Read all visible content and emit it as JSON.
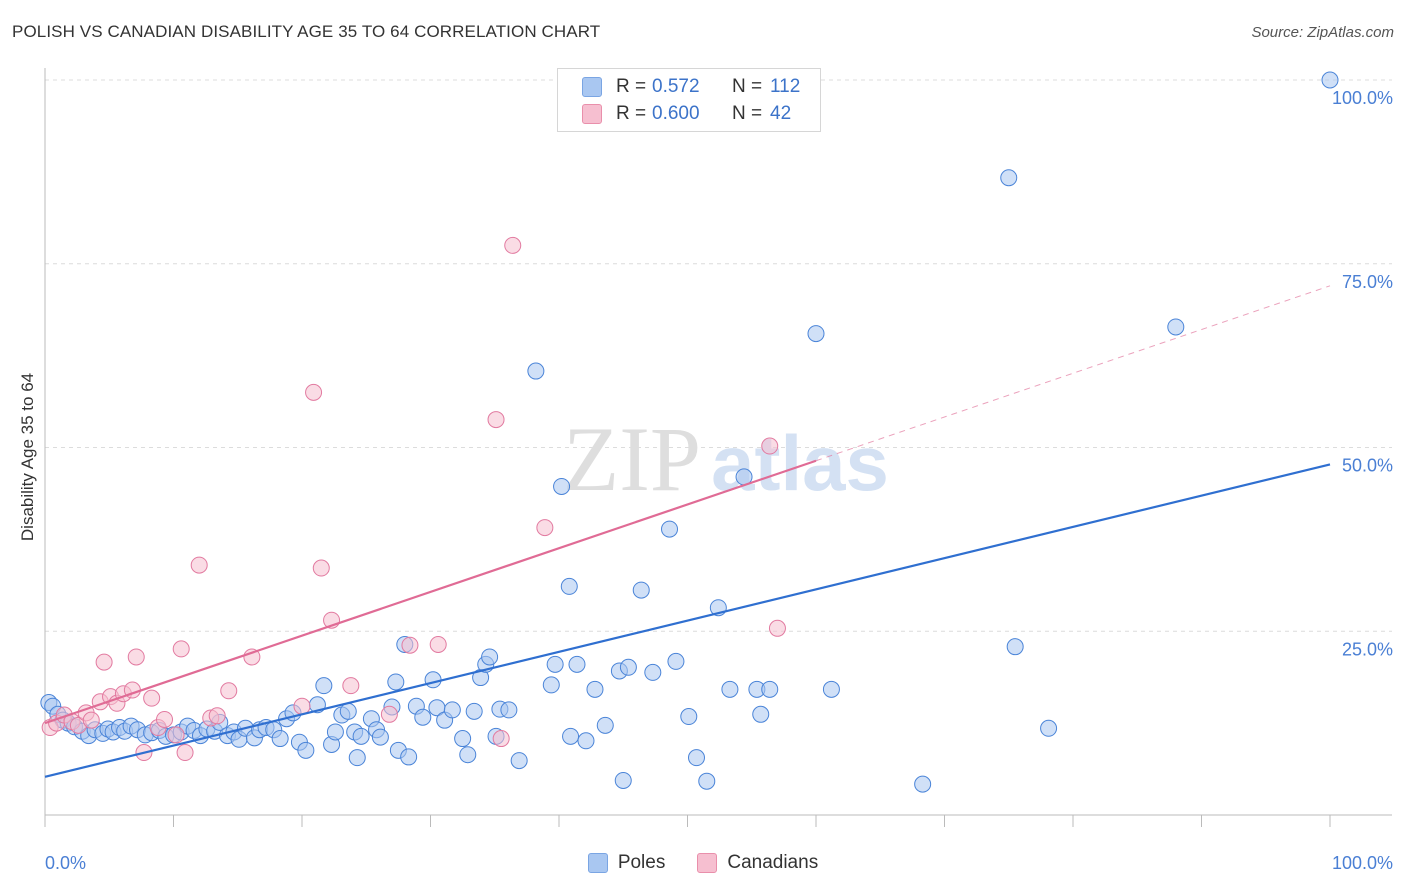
{
  "title": "POLISH VS CANADIAN DISABILITY AGE 35 TO 64 CORRELATION CHART",
  "source": "Source: ZipAtlas.com",
  "watermark": {
    "zip": "ZIP",
    "atlas": "atlas"
  },
  "legend": {
    "rows": [
      {
        "r_key": "R =",
        "r_value": "0.572",
        "n_key": "N =",
        "n_value": "112",
        "color": "#a9c7f1",
        "border": "#7aa5e3"
      },
      {
        "r_key": "R =",
        "r_value": "0.600",
        "n_key": "N =",
        "n_value": "42",
        "color": "#f6bfd0",
        "border": "#e98fab"
      }
    ],
    "bottom": [
      {
        "label": "Poles",
        "color": "#a9c7f1",
        "border": "#7aa5e3"
      },
      {
        "label": "Canadians",
        "color": "#f6bfd0",
        "border": "#e98fab"
      }
    ]
  },
  "chart_data": {
    "type": "scatter",
    "xlabel": "",
    "ylabel": "Disability Age 35 to 64",
    "xlim": [
      0,
      100
    ],
    "ylim": [
      0,
      100
    ],
    "x_tick_labels": [
      "0.0%",
      "100.0%"
    ],
    "y_tick_labels": [
      {
        "value": 25,
        "label": "25.0%"
      },
      {
        "value": 50,
        "label": "50.0%"
      },
      {
        "value": 75,
        "label": "75.0%"
      },
      {
        "value": 100,
        "label": "100.0%"
      }
    ],
    "series": [
      {
        "name": "Poles",
        "color": "#4a84d8",
        "fill": "#a9c7f1",
        "trend": {
          "x": [
            0,
            100
          ],
          "y": [
            5.2,
            47.7
          ],
          "color": "#2f6fd0"
        },
        "points": [
          [
            0.3,
            15.3
          ],
          [
            0.6,
            14.8
          ],
          [
            1.0,
            13.7
          ],
          [
            1.4,
            12.9
          ],
          [
            1.8,
            12.5
          ],
          [
            2.3,
            12.0
          ],
          [
            2.9,
            11.4
          ],
          [
            3.4,
            10.8
          ],
          [
            3.9,
            11.6
          ],
          [
            4.5,
            11.1
          ],
          [
            4.9,
            11.7
          ],
          [
            5.3,
            11.3
          ],
          [
            5.8,
            11.9
          ],
          [
            6.2,
            11.4
          ],
          [
            6.7,
            12.1
          ],
          [
            7.2,
            11.6
          ],
          [
            7.8,
            10.9
          ],
          [
            8.3,
            11.2
          ],
          [
            8.9,
            11.5
          ],
          [
            9.4,
            10.7
          ],
          [
            10.0,
            10.9
          ],
          [
            10.6,
            11.3
          ],
          [
            11.1,
            12.1
          ],
          [
            11.6,
            11.5
          ],
          [
            12.1,
            10.8
          ],
          [
            12.6,
            11.7
          ],
          [
            13.2,
            11.4
          ],
          [
            13.6,
            12.6
          ],
          [
            14.2,
            10.8
          ],
          [
            14.7,
            11.3
          ],
          [
            15.1,
            10.3
          ],
          [
            15.6,
            11.8
          ],
          [
            16.3,
            10.5
          ],
          [
            16.7,
            11.6
          ],
          [
            17.2,
            11.9
          ],
          [
            17.8,
            11.6
          ],
          [
            18.3,
            10.4
          ],
          [
            18.8,
            13.1
          ],
          [
            19.3,
            13.9
          ],
          [
            19.8,
            9.9
          ],
          [
            20.3,
            8.8
          ],
          [
            21.2,
            15.0
          ],
          [
            21.7,
            17.6
          ],
          [
            22.3,
            9.6
          ],
          [
            22.6,
            11.3
          ],
          [
            23.1,
            13.6
          ],
          [
            23.6,
            14.1
          ],
          [
            24.1,
            11.3
          ],
          [
            24.3,
            7.8
          ],
          [
            24.6,
            10.7
          ],
          [
            25.4,
            13.1
          ],
          [
            25.8,
            11.6
          ],
          [
            26.1,
            10.6
          ],
          [
            27.0,
            14.7
          ],
          [
            27.3,
            18.1
          ],
          [
            27.5,
            8.8
          ],
          [
            28.0,
            23.2
          ],
          [
            28.3,
            7.9
          ],
          [
            28.9,
            14.8
          ],
          [
            29.4,
            13.3
          ],
          [
            30.2,
            18.4
          ],
          [
            30.5,
            14.6
          ],
          [
            31.1,
            12.9
          ],
          [
            31.7,
            14.3
          ],
          [
            32.5,
            10.4
          ],
          [
            32.9,
            8.2
          ],
          [
            33.4,
            14.1
          ],
          [
            33.9,
            18.7
          ],
          [
            34.3,
            20.5
          ],
          [
            34.6,
            21.5
          ],
          [
            35.1,
            10.7
          ],
          [
            35.4,
            14.4
          ],
          [
            36.1,
            14.3
          ],
          [
            36.9,
            7.4
          ],
          [
            38.2,
            60.4
          ],
          [
            39.4,
            17.7
          ],
          [
            39.7,
            20.5
          ],
          [
            40.2,
            44.7
          ],
          [
            40.9,
            10.7
          ],
          [
            40.8,
            31.1
          ],
          [
            41.4,
            20.5
          ],
          [
            42.1,
            10.1
          ],
          [
            42.8,
            17.1
          ],
          [
            43.6,
            12.2
          ],
          [
            44.7,
            19.6
          ],
          [
            45.0,
            4.7
          ],
          [
            45.4,
            20.1
          ],
          [
            46.4,
            30.6
          ],
          [
            47.3,
            19.4
          ],
          [
            48.6,
            38.9
          ],
          [
            49.1,
            20.9
          ],
          [
            50.1,
            13.4
          ],
          [
            50.7,
            7.8
          ],
          [
            51.5,
            4.6
          ],
          [
            52.4,
            28.2
          ],
          [
            53.3,
            17.1
          ],
          [
            54.4,
            46.0
          ],
          [
            55.4,
            17.1
          ],
          [
            55.7,
            13.7
          ],
          [
            56.4,
            17.1
          ],
          [
            60.0,
            65.5
          ],
          [
            61.2,
            17.1
          ],
          [
            68.3,
            4.2
          ],
          [
            75.0,
            86.7
          ],
          [
            75.5,
            22.9
          ],
          [
            78.1,
            11.8
          ],
          [
            88.0,
            66.4
          ],
          [
            100.0,
            100.0
          ]
        ]
      },
      {
        "name": "Canadians",
        "color": "#e27aa0",
        "fill": "#f6bfd0",
        "trend": {
          "x": [
            0,
            60
          ],
          "y": [
            12.5,
            48.2
          ],
          "color": "#e06b95"
        },
        "trend_ext": {
          "x": [
            60,
            100
          ],
          "y": [
            48.2,
            72.0
          ]
        },
        "points": [
          [
            0.4,
            11.9
          ],
          [
            0.9,
            12.5
          ],
          [
            1.5,
            13.6
          ],
          [
            2.1,
            12.7
          ],
          [
            2.6,
            12.2
          ],
          [
            3.2,
            13.9
          ],
          [
            3.6,
            12.9
          ],
          [
            4.3,
            15.4
          ],
          [
            4.6,
            20.8
          ],
          [
            5.1,
            16.1
          ],
          [
            5.6,
            15.2
          ],
          [
            6.1,
            16.5
          ],
          [
            6.8,
            17.0
          ],
          [
            7.1,
            21.5
          ],
          [
            7.7,
            8.5
          ],
          [
            8.3,
            15.9
          ],
          [
            8.8,
            11.9
          ],
          [
            9.3,
            13.0
          ],
          [
            10.2,
            10.9
          ],
          [
            10.6,
            22.6
          ],
          [
            10.9,
            8.5
          ],
          [
            12.0,
            34.0
          ],
          [
            12.9,
            13.2
          ],
          [
            13.4,
            13.5
          ],
          [
            14.3,
            16.9
          ],
          [
            16.1,
            21.5
          ],
          [
            20.0,
            14.8
          ],
          [
            20.9,
            57.5
          ],
          [
            21.5,
            33.6
          ],
          [
            22.3,
            26.5
          ],
          [
            23.8,
            17.6
          ],
          [
            26.8,
            13.7
          ],
          [
            28.4,
            23.1
          ],
          [
            30.6,
            23.2
          ],
          [
            35.1,
            53.8
          ],
          [
            35.5,
            10.4
          ],
          [
            36.4,
            77.5
          ],
          [
            38.9,
            39.1
          ],
          [
            56.4,
            50.2
          ],
          [
            57.0,
            25.4
          ]
        ]
      }
    ]
  }
}
